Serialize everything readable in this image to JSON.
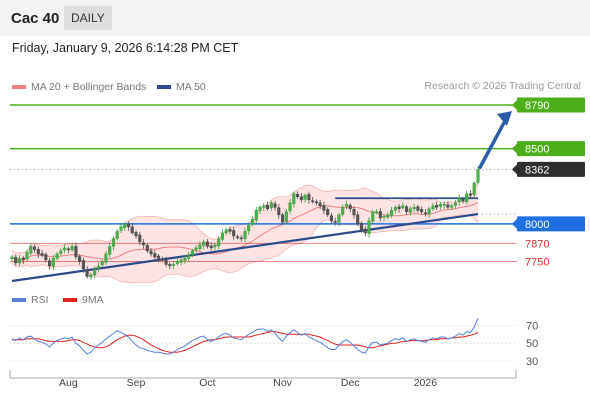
{
  "header": {
    "ticker": "Cac 40",
    "period": "DAILY",
    "datetime": "Friday, January 9, 2026 6:14:28 PM CET"
  },
  "legend": {
    "ma20_bb": {
      "label": "MA 20 + Bollinger Bands",
      "color": "#f08080"
    },
    "ma50": {
      "label": "MA 50",
      "color": "#2b4a8a"
    },
    "credit": "Research © 2026 Trading Central"
  },
  "rsi_legend": {
    "rsi": {
      "label": "RSI",
      "color": "#5a7fd6"
    },
    "ma9": {
      "label": "9MA",
      "color": "#e02020"
    }
  },
  "chart_data": [
    {
      "type": "candlestick",
      "series": "Cac 40 daily",
      "x_ticks": [
        "Aug",
        "Sep",
        "Oct",
        "Nov",
        "Dec",
        "2026"
      ],
      "ylim": [
        7600,
        8850
      ],
      "levels": [
        {
          "value": 8790,
          "label": "8790",
          "kind": "target",
          "color": "#4caf1a"
        },
        {
          "value": 8500,
          "label": "8500",
          "kind": "resistance",
          "color": "#4caf1a"
        },
        {
          "value": 8362,
          "label": "8362",
          "kind": "last",
          "color": "#333333"
        },
        {
          "value": 8000,
          "label": "8000",
          "kind": "pivot",
          "color": "#1e6fe0"
        },
        {
          "value": 7870,
          "label": "7870",
          "kind": "support",
          "color": "#e03030"
        },
        {
          "value": 7750,
          "label": "7750",
          "kind": "support",
          "color": "#e03030"
        }
      ],
      "closes": [
        7780,
        7740,
        7770,
        7760,
        7810,
        7850,
        7830,
        7800,
        7790,
        7760,
        7720,
        7770,
        7800,
        7820,
        7840,
        7830,
        7850,
        7780,
        7750,
        7700,
        7650,
        7660,
        7700,
        7720,
        7750,
        7800,
        7850,
        7900,
        7950,
        7980,
        8000,
        7980,
        7940,
        7920,
        7880,
        7860,
        7820,
        7800,
        7780,
        7770,
        7760,
        7730,
        7720,
        7730,
        7750,
        7760,
        7770,
        7790,
        7820,
        7840,
        7860,
        7880,
        7850,
        7840,
        7860,
        7900,
        7940,
        7960,
        7950,
        7920,
        7910,
        7900,
        7950,
        7990,
        8030,
        8090,
        8110,
        8120,
        8100,
        8140,
        8110,
        8060,
        8010,
        8080,
        8140,
        8200,
        8180,
        8160,
        8190,
        8160,
        8150,
        8140,
        8120,
        8090,
        8060,
        8020,
        8010,
        8060,
        8110,
        8130,
        8100,
        8060,
        8000,
        7960,
        7940,
        8020,
        8080,
        8080,
        8040,
        8050,
        8060,
        8090,
        8110,
        8100,
        8120,
        8080,
        8100,
        8110,
        8090,
        8080,
        8070,
        8100,
        8120,
        8110,
        8130,
        8130,
        8110,
        8120,
        8140,
        8170,
        8150,
        8200,
        8190,
        8270,
        8362
      ],
      "trendline": "rising support from the August low to January",
      "target_arrow": "upward arrow toward 8790"
    },
    {
      "type": "line",
      "name": "RSI",
      "ylim": [
        20,
        85
      ],
      "y_ticks": [
        70,
        50,
        30
      ],
      "series": [
        {
          "name": "RSI",
          "values": [
            55,
            53,
            56,
            54,
            57,
            58,
            55,
            52,
            51,
            49,
            46,
            50,
            53,
            55,
            56,
            55,
            57,
            50,
            47,
            42,
            38,
            40,
            45,
            48,
            51,
            55,
            58,
            61,
            64,
            62,
            60,
            57,
            52,
            48,
            45,
            44,
            42,
            41,
            40,
            40,
            39,
            38,
            38,
            40,
            43,
            45,
            47,
            50,
            53,
            55,
            57,
            58,
            54,
            52,
            54,
            57,
            60,
            61,
            59,
            56,
            55,
            54,
            57,
            60,
            62,
            65,
            66,
            66,
            63,
            65,
            61,
            56,
            52,
            58,
            62,
            65,
            62,
            59,
            61,
            57,
            55,
            53,
            51,
            48,
            45,
            43,
            43,
            48,
            52,
            54,
            51,
            47,
            43,
            40,
            39,
            46,
            51,
            51,
            48,
            49,
            50,
            53,
            55,
            54,
            56,
            52,
            54,
            55,
            53,
            52,
            51,
            54,
            56,
            55,
            57,
            57,
            55,
            56,
            58,
            61,
            59,
            63,
            62,
            68,
            78
          ]
        },
        {
          "name": "9MA",
          "values": [
            54,
            54,
            54,
            54,
            55,
            55,
            55,
            55,
            54,
            53,
            52,
            52,
            52,
            52,
            52,
            53,
            54,
            54,
            53,
            51,
            49,
            47,
            46,
            45,
            45,
            46,
            48,
            51,
            54,
            56,
            58,
            59,
            59,
            58,
            56,
            54,
            51,
            48,
            46,
            44,
            42,
            41,
            40,
            40,
            40,
            41,
            42,
            44,
            46,
            48,
            50,
            52,
            53,
            54,
            54,
            55,
            56,
            57,
            57,
            57,
            57,
            57,
            57,
            57,
            58,
            59,
            60,
            61,
            62,
            63,
            63,
            62,
            61,
            60,
            60,
            60,
            60,
            60,
            60,
            60,
            59,
            58,
            57,
            55,
            53,
            51,
            49,
            48,
            48,
            48,
            48,
            48,
            48,
            47,
            46,
            45,
            45,
            46,
            47,
            48,
            49,
            50,
            50,
            51,
            52,
            52,
            53,
            53,
            53,
            53,
            53,
            54,
            54,
            54,
            55,
            55,
            55,
            56,
            56,
            57,
            57,
            58,
            59,
            60,
            62
          ]
        }
      ]
    }
  ]
}
